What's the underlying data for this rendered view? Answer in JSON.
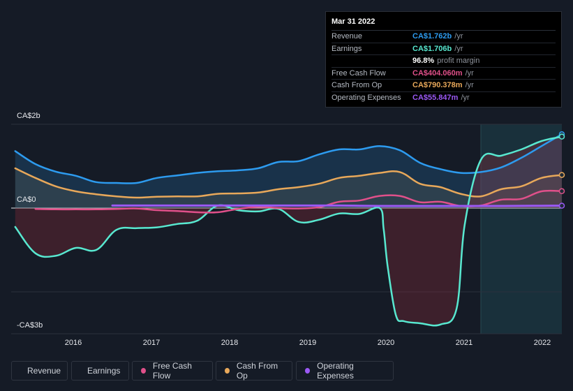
{
  "tooltip": {
    "date": "Mar 31 2022",
    "rows": [
      {
        "label": "Revenue",
        "value": "CA$1.762b",
        "unit": "/yr",
        "color": "#2d9bef"
      },
      {
        "label": "Earnings",
        "value": "CA$1.706b",
        "unit": "/yr",
        "color": "#58e8d0"
      },
      {
        "label": "",
        "value": "96.8%",
        "unit": "profit margin",
        "color": "#ffffff"
      },
      {
        "label": "Free Cash Flow",
        "value": "CA$404.060m",
        "unit": "/yr",
        "color": "#e0508a"
      },
      {
        "label": "Cash From Op",
        "value": "CA$790.378m",
        "unit": "/yr",
        "color": "#e8a85a"
      },
      {
        "label": "Operating Expenses",
        "value": "CA$55.847m",
        "unit": "/yr",
        "color": "#9b59f5"
      }
    ]
  },
  "legend": [
    {
      "label": "Revenue",
      "color": "#2d9bef"
    },
    {
      "label": "Earnings",
      "color": "#58e8d0"
    },
    {
      "label": "Free Cash Flow",
      "color": "#e0508a"
    },
    {
      "label": "Cash From Op",
      "color": "#e8a85a"
    },
    {
      "label": "Operating Expenses",
      "color": "#9b59f5"
    }
  ],
  "chart_data": {
    "type": "area",
    "y_tick_labels": [
      "CA$2b",
      "CA$0",
      "-CA$3b"
    ],
    "x_tick_labels": [
      "2016",
      "2017",
      "2018",
      "2019",
      "2020",
      "2021",
      "2022"
    ],
    "ylim": [
      -3,
      2
    ],
    "xlim": [
      2015.45,
      2022.25
    ],
    "x_tick_values": [
      2016,
      2017,
      2018,
      2019,
      2020,
      2021,
      2022
    ],
    "forecast_start": 2021.25,
    "series": [
      {
        "name": "Revenue",
        "color": "#2d9bef",
        "x": [
          2015.5,
          2015.75,
          2016.0,
          2016.25,
          2016.5,
          2016.75,
          2017.0,
          2017.25,
          2017.5,
          2017.75,
          2018.0,
          2018.25,
          2018.5,
          2018.75,
          2019.0,
          2019.25,
          2019.5,
          2019.75,
          2020.0,
          2020.25,
          2020.5,
          2020.75,
          2021.0,
          2021.25,
          2021.5,
          2021.75,
          2022.0,
          2022.25
        ],
        "values": [
          1.36,
          1.05,
          0.87,
          0.77,
          0.62,
          0.6,
          0.6,
          0.72,
          0.78,
          0.84,
          0.88,
          0.9,
          0.95,
          1.1,
          1.12,
          1.28,
          1.4,
          1.4,
          1.48,
          1.38,
          1.08,
          0.93,
          0.84,
          0.86,
          0.97,
          1.2,
          1.48,
          1.762
        ]
      },
      {
        "name": "Earnings",
        "color": "#58e8d0",
        "x": [
          2015.5,
          2015.75,
          2016.0,
          2016.25,
          2016.5,
          2016.75,
          2017.0,
          2017.25,
          2017.5,
          2017.75,
          2018.0,
          2018.25,
          2018.5,
          2018.75,
          2019.0,
          2019.25,
          2019.5,
          2019.75,
          2020.0,
          2020.05,
          2020.1,
          2020.2,
          2020.3,
          2020.5,
          2020.75,
          2020.95,
          2021.05,
          2021.25,
          2021.5,
          2021.75,
          2022.0,
          2022.25
        ],
        "values": [
          -0.45,
          -1.08,
          -1.14,
          -0.95,
          -1.0,
          -0.52,
          -0.48,
          -0.46,
          -0.38,
          -0.3,
          0.06,
          -0.05,
          -0.08,
          -0.02,
          -0.33,
          -0.28,
          -0.13,
          -0.14,
          0.0,
          -0.5,
          -1.4,
          -2.55,
          -2.7,
          -2.75,
          -2.78,
          -2.4,
          -0.4,
          1.15,
          1.25,
          1.4,
          1.6,
          1.706
        ]
      },
      {
        "name": "Free Cash Flow",
        "color": "#e0508a",
        "x": [
          2015.75,
          2016.0,
          2016.25,
          2016.5,
          2016.75,
          2017.0,
          2017.25,
          2017.5,
          2017.75,
          2018.0,
          2018.25,
          2018.5,
          2018.75,
          2019.0,
          2019.25,
          2019.5,
          2019.75,
          2020.0,
          2020.25,
          2020.5,
          2020.75,
          2021.0,
          2021.25,
          2021.5,
          2021.75,
          2022.0,
          2022.25
        ],
        "values": [
          -0.02,
          -0.03,
          -0.03,
          -0.03,
          -0.02,
          -0.01,
          -0.05,
          -0.07,
          -0.1,
          -0.1,
          -0.02,
          0.03,
          0.0,
          -0.01,
          0.02,
          0.15,
          0.18,
          0.29,
          0.29,
          0.14,
          0.15,
          0.05,
          0.06,
          0.2,
          0.22,
          0.4,
          0.404
        ]
      },
      {
        "name": "Cash From Op",
        "color": "#e8a85a",
        "x": [
          2015.5,
          2015.75,
          2016.0,
          2016.25,
          2016.5,
          2016.75,
          2017.0,
          2017.25,
          2017.5,
          2017.75,
          2018.0,
          2018.25,
          2018.5,
          2018.75,
          2019.0,
          2019.25,
          2019.5,
          2019.75,
          2020.0,
          2020.25,
          2020.5,
          2020.75,
          2021.0,
          2021.25,
          2021.5,
          2021.75,
          2022.0,
          2022.25
        ],
        "values": [
          0.95,
          0.72,
          0.52,
          0.4,
          0.33,
          0.28,
          0.25,
          0.27,
          0.28,
          0.28,
          0.34,
          0.35,
          0.37,
          0.45,
          0.5,
          0.58,
          0.72,
          0.77,
          0.84,
          0.86,
          0.58,
          0.5,
          0.34,
          0.28,
          0.45,
          0.52,
          0.72,
          0.79
        ]
      },
      {
        "name": "Operating Expenses",
        "color": "#9b59f5",
        "x": [
          2016.7,
          2017.0,
          2017.5,
          2018.0,
          2018.5,
          2019.0,
          2019.5,
          2020.0,
          2020.5,
          2021.0,
          2021.5,
          2022.0,
          2022.25
        ],
        "values": [
          0.06,
          0.06,
          0.06,
          0.06,
          0.06,
          0.06,
          0.06,
          0.05,
          0.05,
          0.05,
          0.05,
          0.055,
          0.0558
        ]
      }
    ]
  }
}
